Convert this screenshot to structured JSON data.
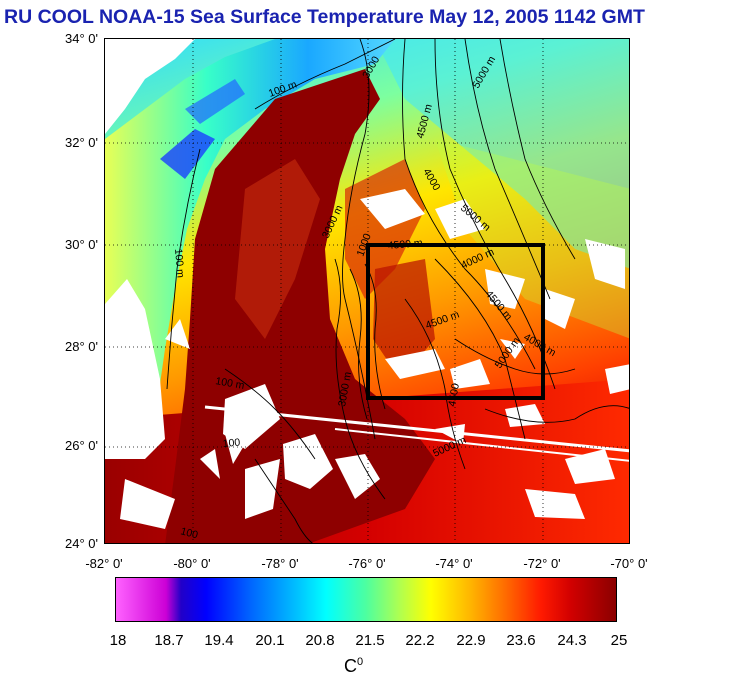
{
  "title": "RU COOL  NOAA-15 Sea Surface Temperature May 12, 2005 1142 GMT",
  "lat_ticks": [
    "34° 0'",
    "32° 0'",
    "30° 0'",
    "28° 0'",
    "26° 0'",
    "24° 0'"
  ],
  "lon_ticks": [
    "-82° 0'",
    "-80° 0'",
    "-78° 0'",
    "-76° 0'",
    "-74° 0'",
    "-72° 0'",
    "-70° 0'"
  ],
  "colorbar": {
    "labels": [
      "18",
      "18.7",
      "19.4",
      "20.1",
      "20.8",
      "21.5",
      "22.2",
      "22.9",
      "23.6",
      "24.3",
      "25"
    ],
    "unit": "C",
    "unit_sup": "0",
    "min": 18,
    "max": 25
  },
  "contour_labels": {
    "c1": "100 m",
    "c2": "3000",
    "c3": "5000 m",
    "c4": "4500 m",
    "c5": "4000",
    "c6": "5000 m",
    "c7": "3000 m",
    "c8": "100 m",
    "c9": "1000",
    "c10": "4500 m",
    "c11": "4000 m",
    "c12": "4500 m",
    "c13": "4500 m",
    "c14": "5000 m",
    "c15": "4000 m",
    "c16": "4500",
    "c17": "5000 m",
    "c18": "100 m",
    "c19": "3000 m",
    "c20": "100",
    "c21": "100"
  },
  "study_box": {
    "lon_min": -76,
    "lon_max": -72,
    "lat_min": 27,
    "lat_max": 30
  },
  "colors": {
    "title": "#1a23b0",
    "land": "#ffffff",
    "box": "#000000"
  }
}
